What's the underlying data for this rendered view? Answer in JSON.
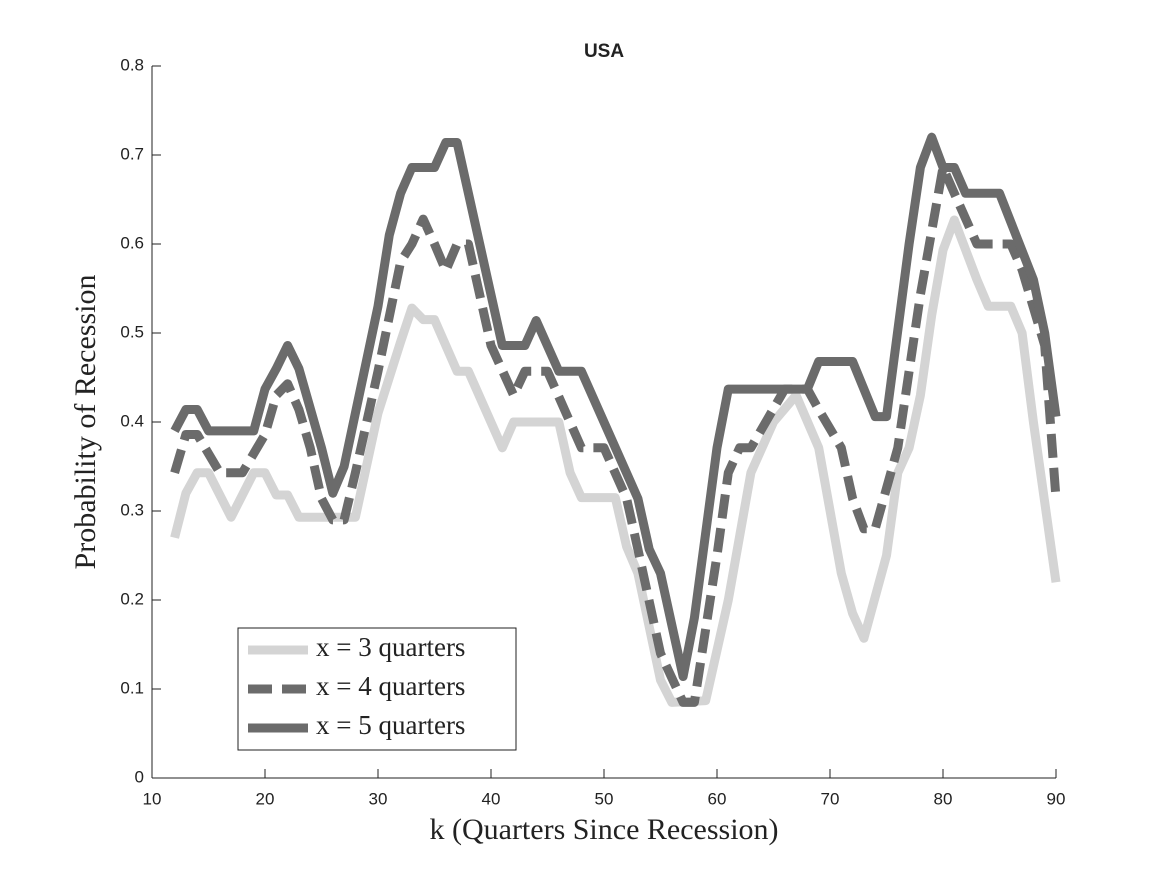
{
  "chart_data": {
    "type": "line",
    "title": "USA",
    "x_label": "k (Quarters Since Recession)",
    "y_label": "Probability of Recession",
    "xlim": [
      10,
      90
    ],
    "ylim": [
      0,
      0.8
    ],
    "xticks": [
      10,
      20,
      30,
      40,
      50,
      60,
      70,
      80,
      90
    ],
    "yticks": [
      0,
      0.1,
      0.2,
      0.3,
      0.4,
      0.5,
      0.6,
      0.7,
      0.8
    ],
    "legend": "lower-left",
    "series": [
      {
        "name": "x = 3 quarters",
        "color": "#d4d4d4",
        "dashed": false,
        "x": [
          12,
          13,
          14,
          15,
          17,
          19,
          20,
          21,
          22,
          23,
          27,
          28,
          30,
          32,
          33,
          34,
          35,
          37,
          38,
          41,
          42,
          46,
          47,
          48,
          51,
          52,
          53,
          55,
          56,
          59,
          61,
          63,
          65,
          67,
          69,
          71,
          72,
          73,
          75,
          76,
          77,
          78,
          79,
          80,
          81,
          83,
          84,
          86,
          87,
          88,
          90
        ],
        "values": [
          0.27,
          0.32,
          0.343,
          0.343,
          0.293,
          0.343,
          0.343,
          0.318,
          0.318,
          0.293,
          0.293,
          0.293,
          0.41,
          0.49,
          0.528,
          0.515,
          0.515,
          0.457,
          0.457,
          0.371,
          0.4,
          0.4,
          0.343,
          0.315,
          0.315,
          0.26,
          0.23,
          0.11,
          0.085,
          0.087,
          0.2,
          0.343,
          0.4,
          0.43,
          0.371,
          0.23,
          0.185,
          0.157,
          0.25,
          0.343,
          0.371,
          0.43,
          0.52,
          0.593,
          0.627,
          0.56,
          0.53,
          0.53,
          0.5,
          0.4,
          0.22
        ]
      },
      {
        "name": "x = 4 quarters",
        "color": "#6b6b6b",
        "dashed": true,
        "x": [
          12,
          13,
          14,
          16,
          18,
          20,
          21,
          22,
          23,
          24,
          25,
          26,
          27,
          28,
          30,
          32,
          33,
          34,
          35,
          36,
          37,
          38,
          40,
          42,
          43,
          45,
          48,
          50,
          52,
          53,
          55,
          57,
          58,
          60,
          61,
          62,
          63,
          66,
          68,
          69,
          71,
          72,
          73,
          74,
          76,
          77,
          78,
          80,
          81,
          83,
          86,
          87,
          89,
          90
        ],
        "values": [
          0.343,
          0.386,
          0.386,
          0.343,
          0.343,
          0.386,
          0.43,
          0.443,
          0.414,
          0.371,
          0.314,
          0.29,
          0.29,
          0.343,
          0.457,
          0.58,
          0.6,
          0.628,
          0.6,
          0.57,
          0.6,
          0.6,
          0.486,
          0.43,
          0.457,
          0.457,
          0.371,
          0.371,
          0.314,
          0.257,
          0.14,
          0.085,
          0.085,
          0.25,
          0.343,
          0.371,
          0.371,
          0.437,
          0.437,
          0.414,
          0.371,
          0.314,
          0.28,
          0.28,
          0.371,
          0.457,
          0.543,
          0.686,
          0.657,
          0.6,
          0.6,
          0.571,
          0.486,
          0.314
        ]
      },
      {
        "name": "x = 5 quarters",
        "color": "#6b6b6b",
        "dashed": false,
        "x": [
          12,
          13,
          14,
          15,
          19,
          20,
          21,
          22,
          23,
          25,
          26,
          27,
          28,
          30,
          31,
          32,
          33,
          35,
          36,
          37,
          39,
          41,
          43,
          44,
          46,
          48,
          53,
          54,
          55,
          57,
          58,
          60,
          61,
          67,
          68,
          69,
          72,
          74,
          75,
          77,
          78,
          79,
          80,
          81,
          82,
          85,
          88,
          89,
          90
        ],
        "values": [
          0.39,
          0.414,
          0.414,
          0.39,
          0.39,
          0.437,
          0.46,
          0.486,
          0.46,
          0.371,
          0.32,
          0.35,
          0.41,
          0.53,
          0.61,
          0.657,
          0.686,
          0.686,
          0.714,
          0.714,
          0.6,
          0.486,
          0.486,
          0.514,
          0.457,
          0.457,
          0.314,
          0.257,
          0.23,
          0.114,
          0.18,
          0.371,
          0.437,
          0.437,
          0.437,
          0.468,
          0.468,
          0.406,
          0.406,
          0.6,
          0.686,
          0.72,
          0.686,
          0.686,
          0.657,
          0.657,
          0.56,
          0.5,
          0.406
        ]
      }
    ]
  }
}
